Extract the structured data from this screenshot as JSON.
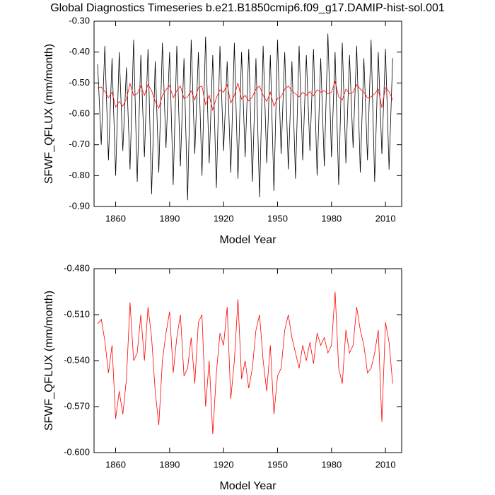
{
  "chart_data": [
    {
      "type": "line",
      "title": "Global Diagnostics Timeseries b.e21.B1850cmip6.f09_g17.DAMIP-hist-sol.001",
      "x_label": "Model Year",
      "y_label": "SFWF_QFLUX (mm/month)",
      "xlim": [
        1848,
        2019
      ],
      "xticks": [
        1860,
        1890,
        1920,
        1950,
        1980,
        2010
      ],
      "ylim": [
        -0.9,
        -0.3
      ],
      "yticks": [
        {
          "value": -0.9,
          "label": "-0.90"
        },
        {
          "value": -0.8,
          "label": "-0.80"
        },
        {
          "value": -0.7,
          "label": "-0.70"
        },
        {
          "value": -0.6,
          "label": "-0.60"
        },
        {
          "value": -0.5,
          "label": "-0.50"
        },
        {
          "value": -0.4,
          "label": "-0.40"
        },
        {
          "value": -0.3,
          "label": "-0.30"
        }
      ],
      "x": [
        1850,
        1852,
        1854,
        1856,
        1858,
        1860,
        1862,
        1864,
        1866,
        1868,
        1870,
        1872,
        1874,
        1876,
        1878,
        1880,
        1882,
        1884,
        1886,
        1888,
        1890,
        1892,
        1894,
        1896,
        1898,
        1900,
        1902,
        1904,
        1906,
        1908,
        1910,
        1912,
        1914,
        1916,
        1918,
        1920,
        1922,
        1924,
        1926,
        1928,
        1930,
        1932,
        1934,
        1936,
        1938,
        1940,
        1942,
        1944,
        1946,
        1948,
        1950,
        1952,
        1954,
        1956,
        1958,
        1960,
        1962,
        1964,
        1966,
        1968,
        1970,
        1972,
        1974,
        1976,
        1978,
        1980,
        1982,
        1984,
        1986,
        1988,
        1990,
        1992,
        1994,
        1996,
        1998,
        2000,
        2002,
        2004,
        2006,
        2008,
        2010,
        2012,
        2014
      ],
      "series": [
        {
          "color": "#000000",
          "values": [
            -0.44,
            -0.7,
            -0.38,
            -0.75,
            -0.42,
            -0.8,
            -0.4,
            -0.72,
            -0.45,
            -0.78,
            -0.36,
            -0.82,
            -0.41,
            -0.74,
            -0.39,
            -0.86,
            -0.43,
            -0.79,
            -0.37,
            -0.71,
            -0.4,
            -0.83,
            -0.38,
            -0.77,
            -0.42,
            -0.88,
            -0.36,
            -0.73,
            -0.4,
            -0.8,
            -0.35,
            -0.76,
            -0.41,
            -0.84,
            -0.38,
            -0.72,
            -0.43,
            -0.79,
            -0.37,
            -0.81,
            -0.4,
            -0.74,
            -0.39,
            -0.82,
            -0.42,
            -0.87,
            -0.38,
            -0.76,
            -0.41,
            -0.85,
            -0.36,
            -0.73,
            -0.4,
            -0.78,
            -0.43,
            -0.81,
            -0.38,
            -0.75,
            -0.41,
            -0.72,
            -0.39,
            -0.8,
            -0.42,
            -0.77,
            -0.34,
            -0.74,
            -0.4,
            -0.83,
            -0.37,
            -0.76,
            -0.41,
            -0.71,
            -0.38,
            -0.79,
            -0.42,
            -0.75,
            -0.36,
            -0.82,
            -0.4,
            -0.73,
            -0.39,
            -0.78,
            -0.42
          ]
        },
        {
          "color": "#ff0000",
          "values": [
            -0.516,
            -0.513,
            -0.527,
            -0.548,
            -0.53,
            -0.578,
            -0.56,
            -0.575,
            -0.552,
            -0.502,
            -0.54,
            -0.535,
            -0.51,
            -0.54,
            -0.505,
            -0.525,
            -0.56,
            -0.582,
            -0.54,
            -0.522,
            -0.508,
            -0.548,
            -0.525,
            -0.51,
            -0.55,
            -0.545,
            -0.525,
            -0.555,
            -0.515,
            -0.51,
            -0.57,
            -0.54,
            -0.588,
            -0.548,
            -0.522,
            -0.53,
            -0.505,
            -0.565,
            -0.54,
            -0.5,
            -0.552,
            -0.54,
            -0.558,
            -0.545,
            -0.52,
            -0.51,
            -0.54,
            -0.56,
            -0.53,
            -0.575,
            -0.55,
            -0.545,
            -0.52,
            -0.51,
            -0.525,
            -0.535,
            -0.545,
            -0.53,
            -0.54,
            -0.528,
            -0.542,
            -0.522,
            -0.53,
            -0.525,
            -0.535,
            -0.53,
            -0.495,
            -0.545,
            -0.555,
            -0.52,
            -0.535,
            -0.53,
            -0.505,
            -0.52,
            -0.53,
            -0.548,
            -0.545,
            -0.535,
            -0.52,
            -0.58,
            -0.515,
            -0.528,
            -0.555
          ]
        }
      ]
    },
    {
      "type": "line",
      "x_label": "Model Year",
      "y_label": "SFWF_QFLUX (mm/month)",
      "xlim": [
        1848,
        2019
      ],
      "xticks": [
        1860,
        1890,
        1920,
        1950,
        1980,
        2010
      ],
      "ylim": [
        -0.6,
        -0.48
      ],
      "yticks": [
        {
          "value": -0.6,
          "label": "-0.600"
        },
        {
          "value": -0.57,
          "label": "-0.570"
        },
        {
          "value": -0.54,
          "label": "-0.540"
        },
        {
          "value": -0.51,
          "label": "-0.510"
        },
        {
          "value": -0.48,
          "label": "-0.480"
        }
      ],
      "x": [
        1850,
        1852,
        1854,
        1856,
        1858,
        1860,
        1862,
        1864,
        1866,
        1868,
        1870,
        1872,
        1874,
        1876,
        1878,
        1880,
        1882,
        1884,
        1886,
        1888,
        1890,
        1892,
        1894,
        1896,
        1898,
        1900,
        1902,
        1904,
        1906,
        1908,
        1910,
        1912,
        1914,
        1916,
        1918,
        1920,
        1922,
        1924,
        1926,
        1928,
        1930,
        1932,
        1934,
        1936,
        1938,
        1940,
        1942,
        1944,
        1946,
        1948,
        1950,
        1952,
        1954,
        1956,
        1958,
        1960,
        1962,
        1964,
        1966,
        1968,
        1970,
        1972,
        1974,
        1976,
        1978,
        1980,
        1982,
        1984,
        1986,
        1988,
        1990,
        1992,
        1994,
        1996,
        1998,
        2000,
        2002,
        2004,
        2006,
        2008,
        2010,
        2012,
        2014
      ],
      "series": [
        {
          "color": "#ff0000",
          "values": [
            -0.516,
            -0.513,
            -0.527,
            -0.548,
            -0.53,
            -0.578,
            -0.56,
            -0.575,
            -0.552,
            -0.502,
            -0.54,
            -0.535,
            -0.51,
            -0.54,
            -0.505,
            -0.525,
            -0.56,
            -0.582,
            -0.54,
            -0.522,
            -0.508,
            -0.548,
            -0.525,
            -0.51,
            -0.55,
            -0.545,
            -0.525,
            -0.555,
            -0.515,
            -0.51,
            -0.57,
            -0.54,
            -0.588,
            -0.548,
            -0.522,
            -0.53,
            -0.505,
            -0.565,
            -0.54,
            -0.5,
            -0.552,
            -0.54,
            -0.558,
            -0.545,
            -0.52,
            -0.51,
            -0.54,
            -0.56,
            -0.53,
            -0.575,
            -0.55,
            -0.545,
            -0.52,
            -0.51,
            -0.525,
            -0.535,
            -0.545,
            -0.53,
            -0.54,
            -0.528,
            -0.542,
            -0.522,
            -0.53,
            -0.525,
            -0.535,
            -0.53,
            -0.495,
            -0.545,
            -0.555,
            -0.52,
            -0.535,
            -0.53,
            -0.505,
            -0.52,
            -0.53,
            -0.548,
            -0.545,
            -0.535,
            -0.52,
            -0.58,
            -0.515,
            -0.528,
            -0.555
          ]
        }
      ]
    }
  ]
}
